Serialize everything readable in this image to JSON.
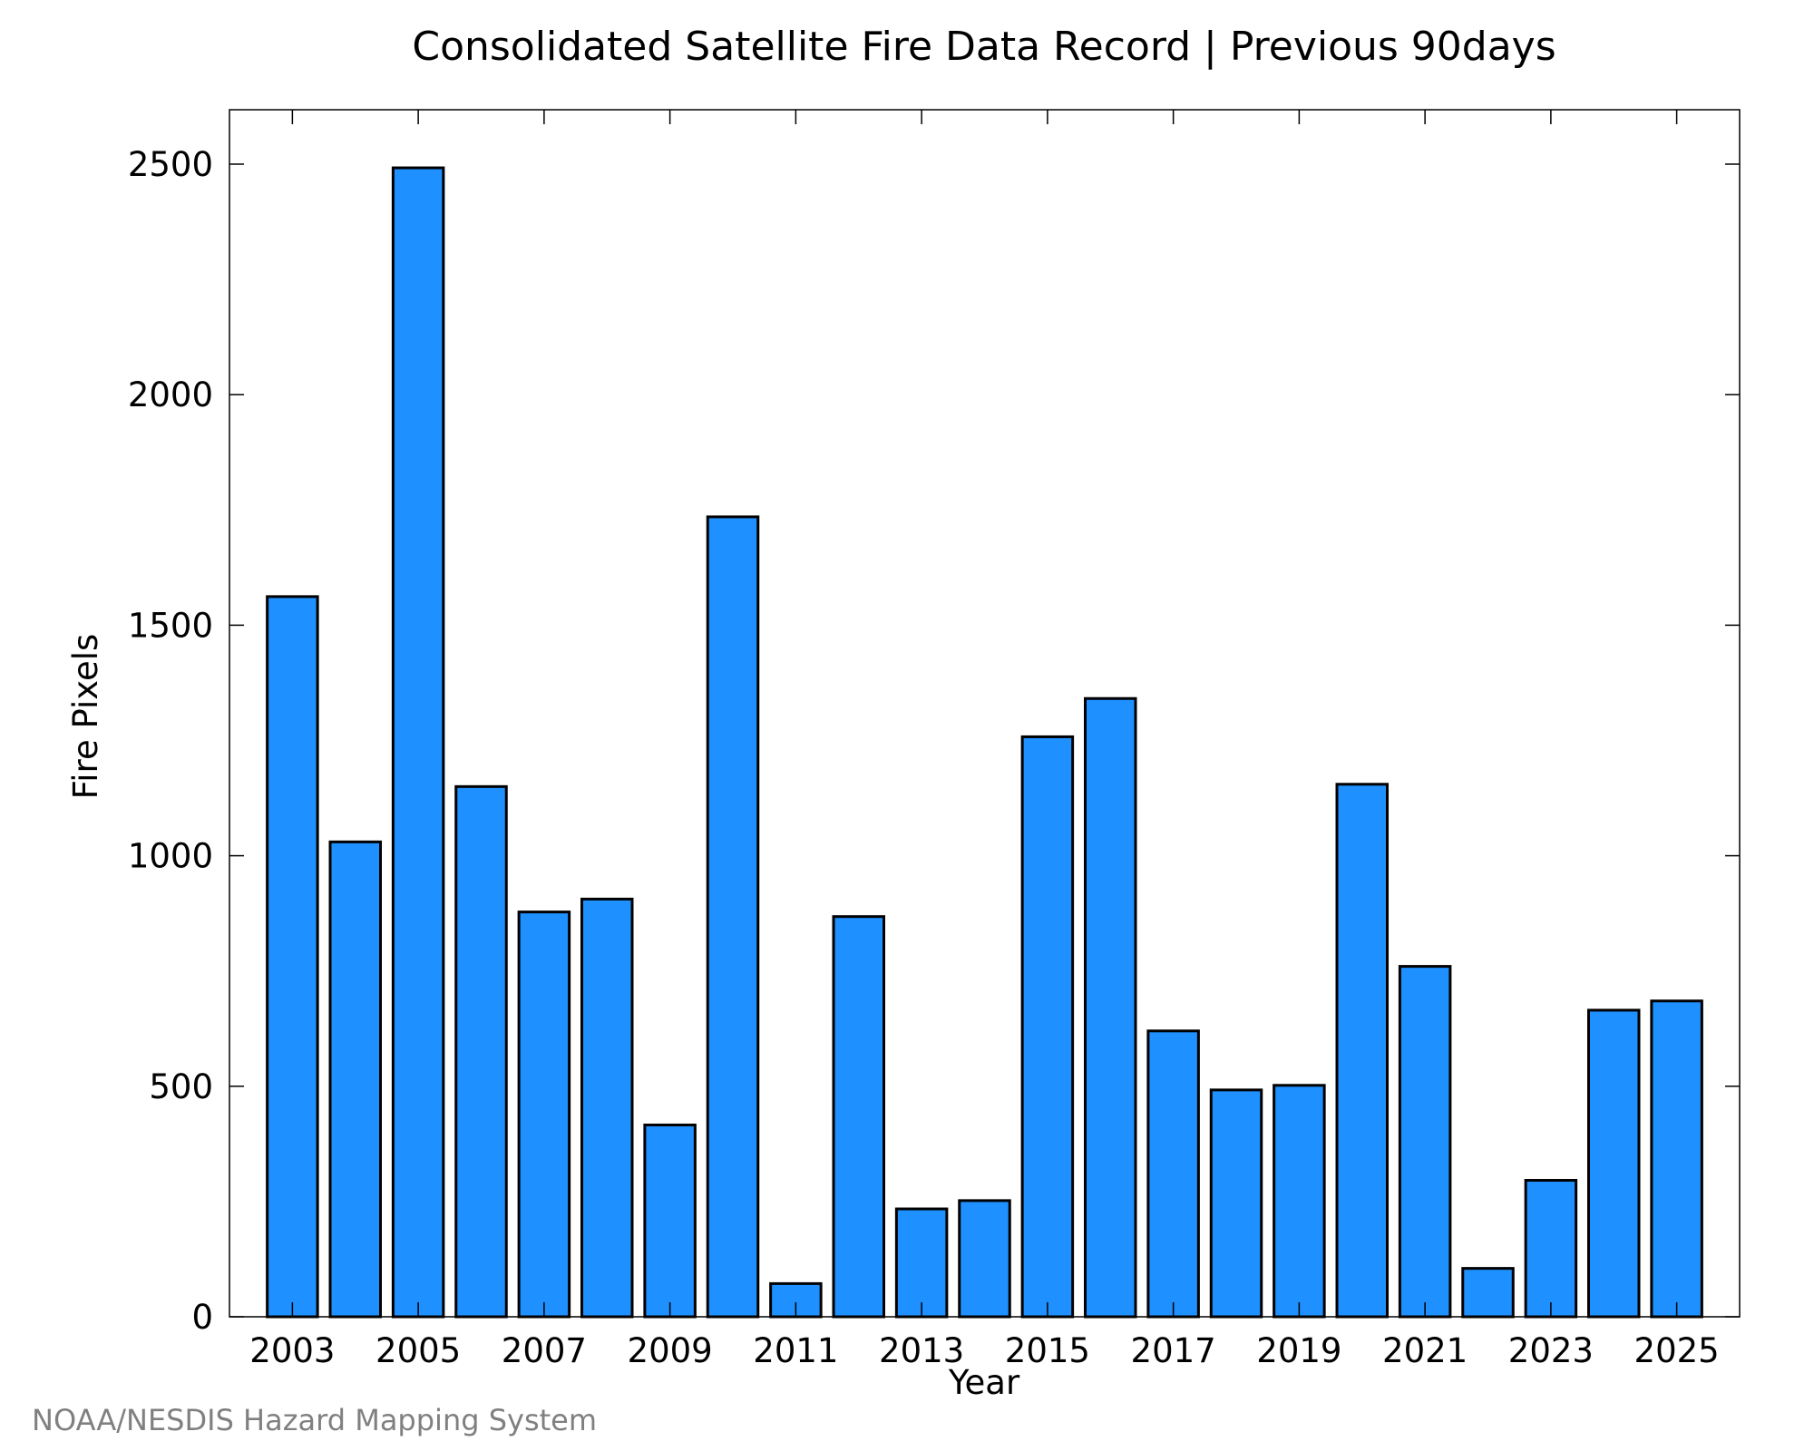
{
  "chart_data": {
    "type": "bar",
    "title": "Consolidated Satellite Fire Data Record | Previous 90days",
    "xlabel": "Year",
    "ylabel": "Fire Pixels",
    "source": "NOAA/NESDIS Hazard Mapping System",
    "bar_color": "#1E90FF",
    "edge_color": "#000000",
    "grid": false,
    "x": [
      2003,
      2004,
      2005,
      2006,
      2007,
      2008,
      2009,
      2010,
      2011,
      2012,
      2013,
      2014,
      2015,
      2016,
      2017,
      2018,
      2019,
      2020,
      2021,
      2022,
      2023,
      2024,
      2025
    ],
    "values": [
      1562,
      1030,
      2492,
      1150,
      878,
      906,
      416,
      1735,
      72,
      868,
      234,
      252,
      1258,
      1341,
      620,
      492,
      502,
      1155,
      760,
      105,
      296,
      665,
      685
    ],
    "xlim": [
      2002,
      2026
    ],
    "ylim": [
      0,
      2618
    ],
    "xticks": [
      2003,
      2005,
      2007,
      2009,
      2011,
      2013,
      2015,
      2017,
      2019,
      2021,
      2023,
      2025
    ],
    "yticks": [
      0,
      500,
      1000,
      1500,
      2000,
      2500
    ],
    "xtick_labels": [
      "2003",
      "2005",
      "2007",
      "2009",
      "2011",
      "2013",
      "2015",
      "2017",
      "2019",
      "2021",
      "2023",
      "2025"
    ],
    "ytick_labels": [
      "0",
      "500",
      "1000",
      "1500",
      "2000",
      "2500"
    ]
  }
}
